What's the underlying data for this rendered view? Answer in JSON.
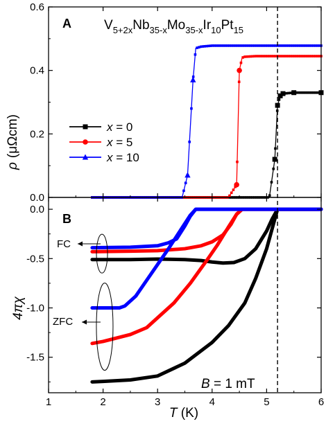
{
  "colors": {
    "x0": "#000000",
    "x5": "#ff0000",
    "x10": "#0000ff"
  },
  "chart_data": [
    {
      "type": "line",
      "panel_label": "A",
      "title_parts": [
        {
          "t": "V",
          "sub": false
        },
        {
          "t": "5+2x",
          "sub": true
        },
        {
          "t": "Nb",
          "sub": false
        },
        {
          "t": "35-x",
          "sub": true
        },
        {
          "t": "Mo",
          "sub": false
        },
        {
          "t": "35-x",
          "sub": true
        },
        {
          "t": "Ir",
          "sub": false
        },
        {
          "t": "10",
          "sub": true
        },
        {
          "t": "Pt",
          "sub": false
        },
        {
          "t": "15",
          "sub": true
        }
      ],
      "ylabel_symbol": "ρ",
      "ylabel_unit": "(μΩcm)",
      "xlim": [
        1,
        6
      ],
      "ylim": [
        0,
        0.6
      ],
      "yticks": [
        0.0,
        0.2,
        0.4,
        0.6
      ],
      "ytick_labels": [
        "0.0",
        "0.2",
        "0.4",
        "0.6"
      ],
      "legend_placement": "center-left",
      "series": [
        {
          "legend_var": "x",
          "legend_eq": " = 0",
          "color_key": "x0",
          "marker": "square",
          "x": [
            1.8,
            4.9,
            5.05,
            5.15,
            5.2,
            5.25,
            5.3,
            5.5,
            6.0
          ],
          "y": [
            0.0,
            0.0,
            0.0,
            0.12,
            0.29,
            0.32,
            0.327,
            0.33,
            0.33
          ]
        },
        {
          "legend_var": "x",
          "legend_eq": " = 5",
          "color_key": "x5",
          "marker": "circle",
          "x": [
            1.8,
            4.3,
            4.45,
            4.5,
            4.55,
            4.6,
            4.8,
            6.0
          ],
          "y": [
            0.0,
            0.0,
            0.04,
            0.4,
            0.44,
            0.443,
            0.445,
            0.445
          ]
        },
        {
          "legend_var": "x",
          "legend_eq": " = 10",
          "color_key": "x10",
          "marker": "triangle",
          "x": [
            1.8,
            3.45,
            3.55,
            3.65,
            3.7,
            3.8,
            4.0,
            6.0
          ],
          "y": [
            0.0,
            0.0,
            0.07,
            0.37,
            0.47,
            0.475,
            0.478,
            0.478
          ]
        }
      ]
    },
    {
      "type": "line",
      "panel_label": "B",
      "ylabel": "4πχ",
      "xlabel_symbol": "T",
      "xlabel_unit": " (K)",
      "xlim": [
        1,
        6
      ],
      "ylim": [
        -1.86,
        0.12
      ],
      "xticks": [
        1,
        2,
        3,
        4,
        5,
        6
      ],
      "xtick_labels": [
        "1",
        "2",
        "3",
        "4",
        "5",
        "6"
      ],
      "yticks": [
        0.0,
        -0.5,
        -1.0,
        -1.5
      ],
      "ytick_labels": [
        "0.0",
        "-0.5",
        "-1.0",
        "-1.5"
      ],
      "annotations": {
        "fc": "FC",
        "zfc": "ZFC",
        "field_var": "B",
        "field_eq": " = 1 mT"
      },
      "series": [
        {
          "name": "x = 0 FC",
          "color_key": "x0",
          "x": [
            1.8,
            2.5,
            3.0,
            3.5,
            3.8,
            4.0,
            4.2,
            4.4,
            4.6,
            4.8,
            5.0,
            5.1,
            5.2,
            5.3,
            6.0
          ],
          "y": [
            -0.51,
            -0.51,
            -0.505,
            -0.51,
            -0.52,
            -0.535,
            -0.545,
            -0.54,
            -0.5,
            -0.4,
            -0.22,
            -0.1,
            0.0,
            0.0,
            0.0
          ]
        },
        {
          "name": "x = 0 ZFC",
          "color_key": "x0",
          "x": [
            1.8,
            2.0,
            2.5,
            3.0,
            3.5,
            4.0,
            4.3,
            4.6,
            4.8,
            5.0,
            5.1,
            5.2,
            5.3,
            6.0
          ],
          "y": [
            -1.75,
            -1.745,
            -1.73,
            -1.69,
            -1.56,
            -1.35,
            -1.18,
            -0.95,
            -0.7,
            -0.4,
            -0.2,
            0.0,
            0.0,
            0.0
          ]
        },
        {
          "name": "x = 5 FC",
          "color_key": "x5",
          "x": [
            1.8,
            2.5,
            3.0,
            3.5,
            3.8,
            4.0,
            4.2,
            4.35,
            4.45,
            4.55,
            6.0
          ],
          "y": [
            -0.43,
            -0.425,
            -0.42,
            -0.4,
            -0.37,
            -0.33,
            -0.26,
            -0.15,
            -0.05,
            0.0,
            0.0
          ]
        },
        {
          "name": "x = 5 ZFC",
          "color_key": "x5",
          "x": [
            1.8,
            2.0,
            2.5,
            2.8,
            3.0,
            3.3,
            3.6,
            3.9,
            4.1,
            4.3,
            4.45,
            4.55,
            6.0
          ],
          "y": [
            -1.36,
            -1.34,
            -1.27,
            -1.2,
            -1.1,
            -0.95,
            -0.75,
            -0.52,
            -0.36,
            -0.18,
            -0.05,
            0.0,
            0.0
          ]
        },
        {
          "name": "x = 10 FC",
          "color_key": "x10",
          "x": [
            1.8,
            2.5,
            3.0,
            3.2,
            3.35,
            3.5,
            3.6,
            3.7,
            6.0
          ],
          "y": [
            -0.39,
            -0.385,
            -0.37,
            -0.34,
            -0.3,
            -0.17,
            -0.07,
            0.0,
            0.0
          ]
        },
        {
          "name": "x = 10 ZFC",
          "color_key": "x10",
          "x": [
            1.8,
            2.3,
            2.4,
            2.6,
            2.8,
            3.0,
            3.2,
            3.4,
            3.6,
            3.7,
            6.0
          ],
          "y": [
            -1.0,
            -1.0,
            -0.98,
            -0.88,
            -0.72,
            -0.56,
            -0.4,
            -0.23,
            -0.06,
            0.0,
            0.0
          ]
        }
      ]
    }
  ],
  "reference_line_T": 5.2
}
